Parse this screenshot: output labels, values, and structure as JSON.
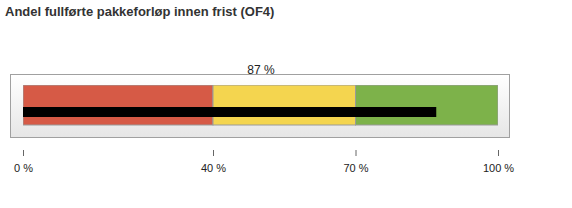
{
  "chart_data": {
    "type": "bullet",
    "title": "Andel fullførte pakkeforløp innen frist (OF4)",
    "orientation": "horizontal",
    "values": [
      87
    ],
    "value_labels": [
      "87 %"
    ],
    "data_labels": true,
    "color": "#000000",
    "bands": [
      {
        "from": 0,
        "to": 40,
        "color": "#d65a46"
      },
      {
        "from": 40,
        "to": 70,
        "color": "#f4d54f"
      },
      {
        "from": 70,
        "to": 100,
        "color": "#7db24a"
      }
    ],
    "xlim": [
      0,
      100
    ],
    "xticks": [
      {
        "value": 0,
        "label": "0 %"
      },
      {
        "value": 40,
        "label": "40 %"
      },
      {
        "value": 70,
        "label": "70 %"
      },
      {
        "value": 100,
        "label": "100 %"
      }
    ]
  }
}
